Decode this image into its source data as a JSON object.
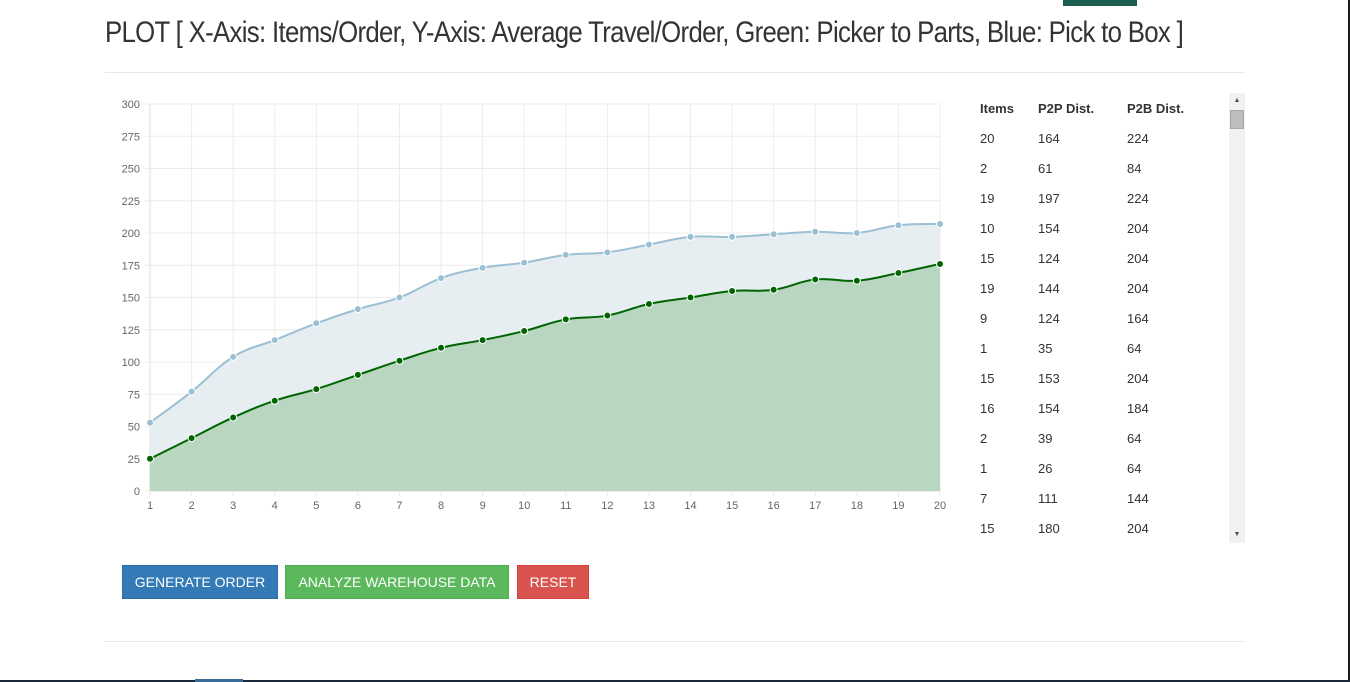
{
  "page": {
    "title": "PLOT [ X-Axis: Items/Order, Y-Axis: Average Travel/Order, Green: Picker to Parts, Blue: Pick to Box ]"
  },
  "chart_data": {
    "type": "area",
    "x": [
      1,
      2,
      3,
      4,
      5,
      6,
      7,
      8,
      9,
      10,
      11,
      12,
      13,
      14,
      15,
      16,
      17,
      18,
      19,
      20
    ],
    "ylim": [
      0,
      300
    ],
    "yticks": [
      0,
      25,
      50,
      75,
      100,
      125,
      150,
      175,
      200,
      225,
      250,
      275,
      300
    ],
    "grid": true,
    "series": [
      {
        "color": "#9bbfd3",
        "fill": "#e6eef2",
        "values": [
          53,
          77,
          104,
          117,
          130,
          141,
          150,
          165,
          173,
          177,
          183,
          185,
          191,
          197,
          197,
          199,
          201,
          200,
          206,
          207
        ]
      },
      {
        "color": "#006400",
        "fill": "#b8d6c0",
        "values": [
          25,
          41,
          57,
          70,
          79,
          90,
          101,
          111,
          117,
          124,
          133,
          136,
          145,
          150,
          155,
          156,
          164,
          163,
          169,
          176
        ]
      }
    ]
  },
  "table": {
    "headers": [
      "Items",
      "P2P Dist.",
      "P2B Dist."
    ],
    "rows": [
      [
        "20",
        "164",
        "224"
      ],
      [
        "2",
        "61",
        "84"
      ],
      [
        "19",
        "197",
        "224"
      ],
      [
        "10",
        "154",
        "204"
      ],
      [
        "15",
        "124",
        "204"
      ],
      [
        "19",
        "144",
        "204"
      ],
      [
        "9",
        "124",
        "164"
      ],
      [
        "1",
        "35",
        "64"
      ],
      [
        "15",
        "153",
        "204"
      ],
      [
        "16",
        "154",
        "184"
      ],
      [
        "2",
        "39",
        "64"
      ],
      [
        "1",
        "26",
        "64"
      ],
      [
        "7",
        "111",
        "144"
      ],
      [
        "15",
        "180",
        "204"
      ]
    ]
  },
  "buttons": {
    "generate": "GENERATE ORDER",
    "analyze": "ANALYZE WAREHOUSE DATA",
    "reset": "RESET"
  },
  "colors": {
    "primary": "#337ab7",
    "success": "#5cb85c",
    "danger": "#d9534f"
  }
}
